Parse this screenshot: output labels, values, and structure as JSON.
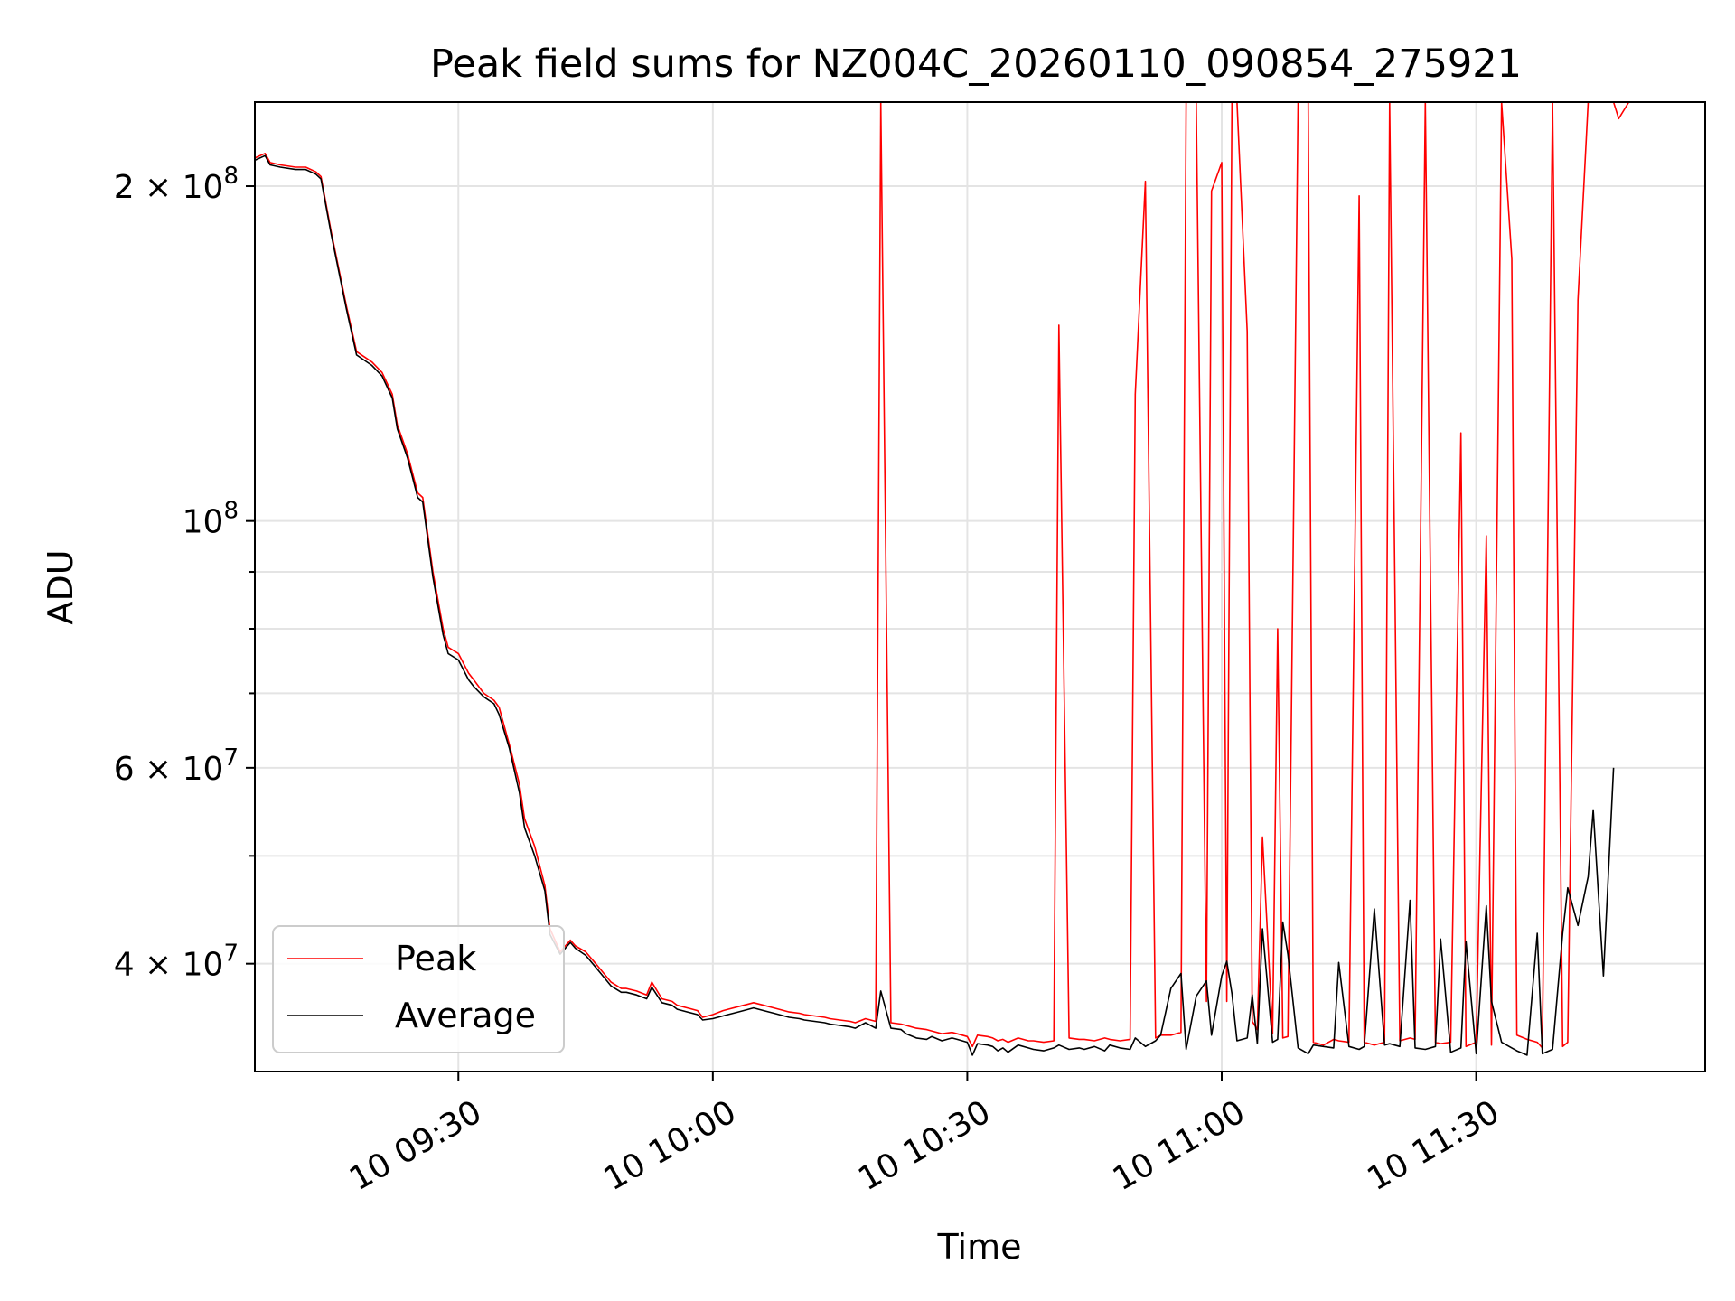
{
  "chart_data": {
    "type": "line",
    "title": "Peak field sums for NZ004C_20260110_090854_275921",
    "xlabel": "Time",
    "ylabel": "ADU",
    "yscale": "log",
    "ylim": [
      32000000,
      238000000
    ],
    "xlim_minutes": [
      9.1,
      11.95
    ],
    "x_unit": "hours since 10 00:00",
    "grid": true,
    "legend_position": "lower-left",
    "x_ticks": [
      {
        "value": 9.5,
        "label": "10 09:30"
      },
      {
        "value": 10.0,
        "label": "10 10:00"
      },
      {
        "value": 10.5,
        "label": "10 10:30"
      },
      {
        "value": 11.0,
        "label": "10 11:00"
      },
      {
        "value": 11.5,
        "label": "10 11:30"
      }
    ],
    "y_major_ticks": [
      {
        "value": 40000000,
        "base": "4 × 10",
        "exp": "7"
      },
      {
        "value": 60000000,
        "base": "6 × 10",
        "exp": "7"
      },
      {
        "value": 100000000,
        "base": "10",
        "exp": "8"
      },
      {
        "value": 200000000,
        "base": "2 × 10",
        "exp": "8"
      }
    ],
    "y_minor_ticks": [
      50000000,
      70000000,
      80000000,
      90000000
    ],
    "x_sample_hours": [
      9.1,
      9.12,
      9.13,
      9.15,
      9.18,
      9.2,
      9.22,
      9.23,
      9.25,
      9.28,
      9.3,
      9.32,
      9.33,
      9.35,
      9.37,
      9.38,
      9.4,
      9.42,
      9.43,
      9.45,
      9.47,
      9.48,
      9.5,
      9.52,
      9.53,
      9.55,
      9.57,
      9.58,
      9.6,
      9.62,
      9.63,
      9.65,
      9.67,
      9.68,
      9.7,
      9.72,
      9.73,
      9.75,
      9.77,
      9.78,
      9.8,
      9.82,
      9.83,
      9.85,
      9.87,
      9.88,
      9.9,
      9.92,
      9.93,
      9.95,
      9.97,
      9.98,
      10.0,
      10.02,
      10.03,
      10.05,
      10.07,
      10.08,
      10.1,
      10.12,
      10.13,
      10.15,
      10.17,
      10.18,
      10.2,
      10.22,
      10.23,
      10.25,
      10.27,
      10.28,
      10.3,
      10.32,
      10.33,
      10.35,
      10.37,
      10.38,
      10.4,
      10.42,
      10.43,
      10.45,
      10.47,
      10.48,
      10.5,
      10.51,
      10.52,
      10.54,
      10.55,
      10.56,
      10.57,
      10.58,
      10.6,
      10.62,
      10.63,
      10.65,
      10.67,
      10.68,
      10.7,
      10.72,
      10.73,
      10.75,
      10.77,
      10.78,
      10.8,
      10.82,
      10.83,
      10.85,
      10.87,
      10.88,
      10.9,
      10.92,
      10.93,
      10.95,
      10.97,
      10.98,
      11.0,
      11.01,
      11.02,
      11.03,
      11.05,
      11.06,
      11.07,
      11.08,
      11.1,
      11.11,
      11.12,
      11.13,
      11.15,
      11.17,
      11.18,
      11.2,
      11.22,
      11.23,
      11.25,
      11.27,
      11.28,
      11.3,
      11.32,
      11.33,
      11.35,
      11.37,
      11.38,
      11.4,
      11.42,
      11.43,
      11.45,
      11.47,
      11.48,
      11.5,
      11.52,
      11.53,
      11.55,
      11.57,
      11.58,
      11.6,
      11.62,
      11.63,
      11.65,
      11.67,
      11.68,
      11.7,
      11.72,
      11.73,
      11.75,
      11.77,
      11.78,
      11.8,
      11.82,
      11.83,
      11.85,
      11.87,
      11.88,
      11.9,
      11.92,
      11.93,
      11.95
    ],
    "series": [
      {
        "name": "Peak",
        "color": "#ff0000",
        "values": [
          212000000,
          214000000,
          210000000,
          209000000,
          208000000,
          208000000,
          206000000,
          204000000,
          182000000,
          156000000,
          142000000,
          140000000,
          139000000,
          136000000,
          130000000,
          122000000,
          115000000,
          106000000,
          105000000,
          90000000,
          80000000,
          77000000,
          76000000,
          73000000,
          72000000,
          70000000,
          69000000,
          68000000,
          63000000,
          58000000,
          54000000,
          51000000,
          47000000,
          43000000,
          41000000,
          42000000,
          41500000,
          41000000,
          40000000,
          39500000,
          38500000,
          38000000,
          38000000,
          37800000,
          37500000,
          38500000,
          37200000,
          37000000,
          36700000,
          36500000,
          36300000,
          35800000,
          36000000,
          36300000,
          36400000,
          36600000,
          36800000,
          36900000,
          36700000,
          36500000,
          36400000,
          36200000,
          36100000,
          36000000,
          35900000,
          35800000,
          35700000,
          35600000,
          35500000,
          35400000,
          35700000,
          35500000,
          240000000,
          35400000,
          35300000,
          35200000,
          35000000,
          34900000,
          34800000,
          34600000,
          34700000,
          34600000,
          34400000,
          33700000,
          34500000,
          34400000,
          34300000,
          34100000,
          34200000,
          34000000,
          34300000,
          34100000,
          34100000,
          34000000,
          34100000,
          150000000,
          34300000,
          34200000,
          34200000,
          34100000,
          34300000,
          34200000,
          34100000,
          34200000,
          130000000,
          202000000,
          34300000,
          34500000,
          34500000,
          34700000,
          240000000,
          240000000,
          37000000,
          198000000,
          210000000,
          37000000,
          240000000,
          240000000,
          148000000,
          35500000,
          34900000,
          52000000,
          34600000,
          80000000,
          34300000,
          34400000,
          238000000,
          240000000,
          34000000,
          33800000,
          34200000,
          34100000,
          34000000,
          196000000,
          34000000,
          33800000,
          34000000,
          240000000,
          34100000,
          34300000,
          34200000,
          240000000,
          34000000,
          33900000,
          34000000,
          120000000,
          33700000,
          34000000,
          97000000,
          33800000,
          240000000,
          172000000,
          34500000,
          34200000,
          34000000,
          33600000,
          240000000,
          33700000,
          34000000,
          158000000,
          240000000,
          240000000,
          240000000,
          238000000,
          230000000,
          239000000
        ]
      },
      {
        "name": "Average",
        "color": "#000000",
        "values": [
          211000000,
          213000000,
          209000000,
          208000000,
          207000000,
          207000000,
          205000000,
          203000000,
          181000000,
          155000000,
          141000000,
          139000000,
          138000000,
          135000000,
          129000000,
          121000000,
          114000000,
          105000000,
          104000000,
          89000000,
          79000000,
          76000000,
          75000000,
          72000000,
          71000000,
          69500000,
          68500000,
          67000000,
          62500000,
          57000000,
          53000000,
          50000000,
          46500000,
          42500000,
          40800000,
          41800000,
          41300000,
          40700000,
          39700000,
          39200000,
          38200000,
          37700000,
          37700000,
          37500000,
          37200000,
          38100000,
          36900000,
          36700000,
          36400000,
          36200000,
          36000000,
          35600000,
          35700000,
          35900000,
          36000000,
          36200000,
          36400000,
          36500000,
          36300000,
          36100000,
          36000000,
          35800000,
          35700000,
          35600000,
          35500000,
          35400000,
          35300000,
          35200000,
          35100000,
          35000000,
          35400000,
          35000000,
          37800000,
          35000000,
          34900000,
          34600000,
          34300000,
          34200000,
          34400000,
          34100000,
          34300000,
          34200000,
          34000000,
          33100000,
          33900000,
          33800000,
          33700000,
          33400000,
          33600000,
          33300000,
          33800000,
          33600000,
          33500000,
          33400000,
          33600000,
          33800000,
          33500000,
          33600000,
          33500000,
          33700000,
          33400000,
          33800000,
          33600000,
          33500000,
          34300000,
          33700000,
          34100000,
          34500000,
          38000000,
          39200000,
          33500000,
          37400000,
          38600000,
          34500000,
          39000000,
          40200000,
          37600000,
          34100000,
          34300000,
          37500000,
          33900000,
          43000000,
          34000000,
          34200000,
          43600000,
          40800000,
          33600000,
          33200000,
          33800000,
          33700000,
          33600000,
          40100000,
          33700000,
          33500000,
          33700000,
          44800000,
          33800000,
          33900000,
          33700000,
          45600000,
          33600000,
          33500000,
          33700000,
          42100000,
          33300000,
          33600000,
          41900000,
          33200000,
          45100000,
          37000000,
          34000000,
          33600000,
          33400000,
          33100000,
          42600000,
          33200000,
          33500000,
          42600000,
          46800000,
          43300000,
          47900000,
          55000000,
          39000000,
          60000000
        ]
      }
    ],
    "legend": [
      {
        "label": "Peak",
        "color": "#ff0000"
      },
      {
        "label": "Average",
        "color": "#000000"
      }
    ]
  }
}
